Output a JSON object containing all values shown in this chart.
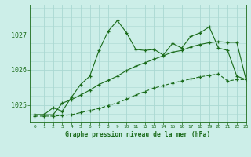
{
  "title": "Graphe pression niveau de la mer (hPa)",
  "bg_color": "#cceee8",
  "grid_color": "#aad8d2",
  "line_color": "#1a6b1a",
  "xlim": [
    -0.5,
    23
  ],
  "ylim": [
    1024.5,
    1027.85
  ],
  "yticks": [
    1025,
    1026,
    1027
  ],
  "xticks": [
    0,
    1,
    2,
    3,
    4,
    5,
    6,
    7,
    8,
    9,
    10,
    11,
    12,
    13,
    14,
    15,
    16,
    17,
    18,
    19,
    20,
    21,
    22,
    23
  ],
  "line1_x": [
    0,
    1,
    2,
    3,
    4,
    5,
    6,
    7,
    8,
    9,
    10,
    11,
    12,
    13,
    14,
    15,
    16,
    17,
    18,
    19,
    20,
    21,
    22,
    23
  ],
  "line1_y": [
    1024.72,
    1024.72,
    1024.92,
    1024.82,
    1025.22,
    1025.58,
    1025.82,
    1026.55,
    1027.1,
    1027.4,
    1027.05,
    1026.58,
    1026.55,
    1026.58,
    1026.42,
    1026.75,
    1026.62,
    1026.95,
    1027.05,
    1027.22,
    1026.62,
    1026.55,
    1025.82,
    1025.72
  ],
  "line2_x": [
    0,
    1,
    2,
    3,
    4,
    5,
    6,
    7,
    8,
    9,
    10,
    11,
    12,
    13,
    14,
    15,
    16,
    17,
    18,
    19,
    20,
    21,
    22,
    23
  ],
  "line2_y": [
    1024.72,
    1024.72,
    1024.72,
    1025.05,
    1025.15,
    1025.28,
    1025.42,
    1025.58,
    1025.7,
    1025.82,
    1025.98,
    1026.1,
    1026.2,
    1026.3,
    1026.4,
    1026.5,
    1026.55,
    1026.65,
    1026.72,
    1026.77,
    1026.8,
    1026.78,
    1026.78,
    1025.72
  ],
  "line3_x": [
    0,
    1,
    2,
    3,
    4,
    5,
    6,
    7,
    8,
    9,
    10,
    11,
    12,
    13,
    14,
    15,
    16,
    17,
    18,
    19,
    20,
    21,
    22,
    23
  ],
  "line3_y": [
    1024.68,
    1024.68,
    1024.68,
    1024.7,
    1024.72,
    1024.78,
    1024.84,
    1024.9,
    1024.98,
    1025.06,
    1025.16,
    1025.28,
    1025.38,
    1025.48,
    1025.55,
    1025.62,
    1025.68,
    1025.74,
    1025.8,
    1025.84,
    1025.88,
    1025.68,
    1025.72,
    1025.72
  ]
}
